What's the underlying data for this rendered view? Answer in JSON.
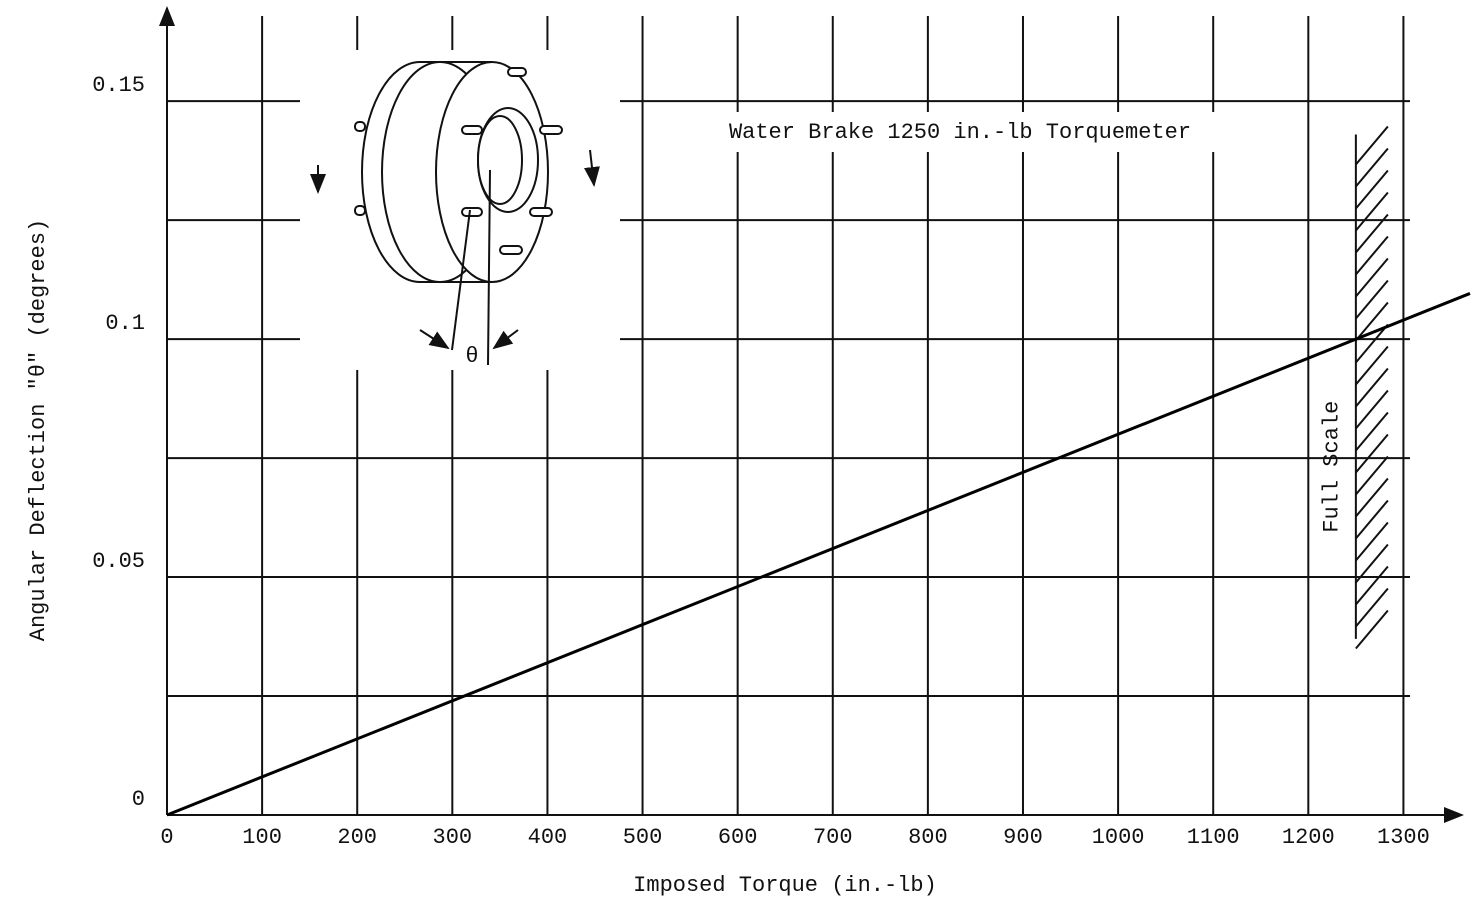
{
  "chart_data": {
    "type": "line",
    "x_label": "Imposed Torque (in.-lb)",
    "y_label": "Angular Deflection \"θ\" (degrees)",
    "annotation": "Water Brake 1250 in.-lb Torquemeter",
    "diagram_label": "θ",
    "full_scale": {
      "label": "Full Scale",
      "x": 1250,
      "ylim": [
        0.037,
        0.143
      ]
    },
    "x": [
      0,
      1370
    ],
    "series": [
      {
        "values": [
          0,
          0.1096
        ],
        "color": "#000000"
      }
    ],
    "xlim": [
      0,
      1370
    ],
    "ylim": [
      0,
      0.17
    ],
    "xticks": [
      0,
      100,
      200,
      300,
      400,
      500,
      600,
      700,
      800,
      900,
      1000,
      1100,
      1200,
      1300
    ],
    "yticks": [
      0,
      0.05,
      {
        "value": 0.1,
        "label": "0.1"
      },
      0.15
    ],
    "minor_yticks": [
      0.025,
      0.075,
      0.125
    ],
    "grid": true
  }
}
